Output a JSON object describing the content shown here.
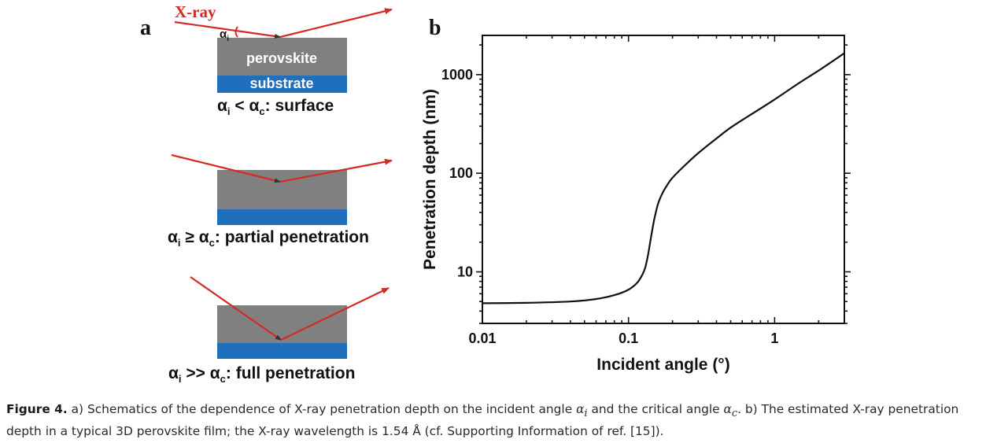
{
  "panel_a": {
    "label": "a",
    "xray_label": "X-ray",
    "alpha_i_label": "α",
    "alpha_i_sub": "i",
    "layer_top": "perovskite",
    "layer_bottom": "substrate",
    "schematics": [
      {
        "condition": {
          "alpha": "α",
          "i": "i",
          "relation": " < ",
          "c": "c",
          "text": ": surface"
        }
      },
      {
        "condition": {
          "alpha": "α",
          "i": "i",
          "relation": " ≥ ",
          "c": "c",
          "text": ": partial penetration"
        }
      },
      {
        "condition": {
          "alpha": "α",
          "i": "i",
          "relation": " >> ",
          "c": "c",
          "text": ": full penetration"
        }
      }
    ],
    "colors": {
      "film": "#808080",
      "substrate": "#1f6fbd",
      "beam": "#d42a24"
    }
  },
  "panel_b": {
    "label": "b"
  },
  "chart_data": {
    "type": "line",
    "title": "",
    "xlabel": "Incident angle (°)",
    "ylabel": "Penetration depth (nm)",
    "xscale": "log",
    "yscale": "log",
    "xlim": [
      0.01,
      3
    ],
    "ylim": [
      3,
      2500
    ],
    "xticks": [
      0.01,
      0.1,
      1
    ],
    "xtick_labels": [
      "0.01",
      "0.1",
      "1"
    ],
    "yticks": [
      10,
      100,
      1000
    ],
    "ytick_labels": [
      "10",
      "100",
      "1000"
    ],
    "grid": false,
    "series": [
      {
        "x": [
          0.01,
          0.02,
          0.04,
          0.06,
          0.08,
          0.1,
          0.115,
          0.125,
          0.13,
          0.135,
          0.14,
          0.145,
          0.15,
          0.155,
          0.16,
          0.17,
          0.18,
          0.2,
          0.25,
          0.3,
          0.4,
          0.5,
          0.7,
          1.0,
          1.5,
          2.0,
          3.0
        ],
        "y": [
          4.8,
          4.85,
          5.0,
          5.3,
          5.8,
          6.6,
          7.8,
          9.5,
          11,
          14,
          19,
          26,
          34,
          42,
          50,
          62,
          72,
          90,
          125,
          160,
          225,
          290,
          400,
          560,
          840,
          1100,
          1650
        ]
      }
    ]
  },
  "caption": {
    "figure_label": "Figure 4.",
    "part1": " a) Schematics of the dependence of X-ray penetration depth on the incident angle ",
    "alpha": "α",
    "sub_i": "i",
    "part2": " and the critical angle ",
    "sub_c": "c",
    "part3": ". b) The estimated X-ray penetration depth in a typical 3D perovskite film; the X-ray wavelength is 1.54 Å (cf. Supporting Information of ref. [15])."
  }
}
